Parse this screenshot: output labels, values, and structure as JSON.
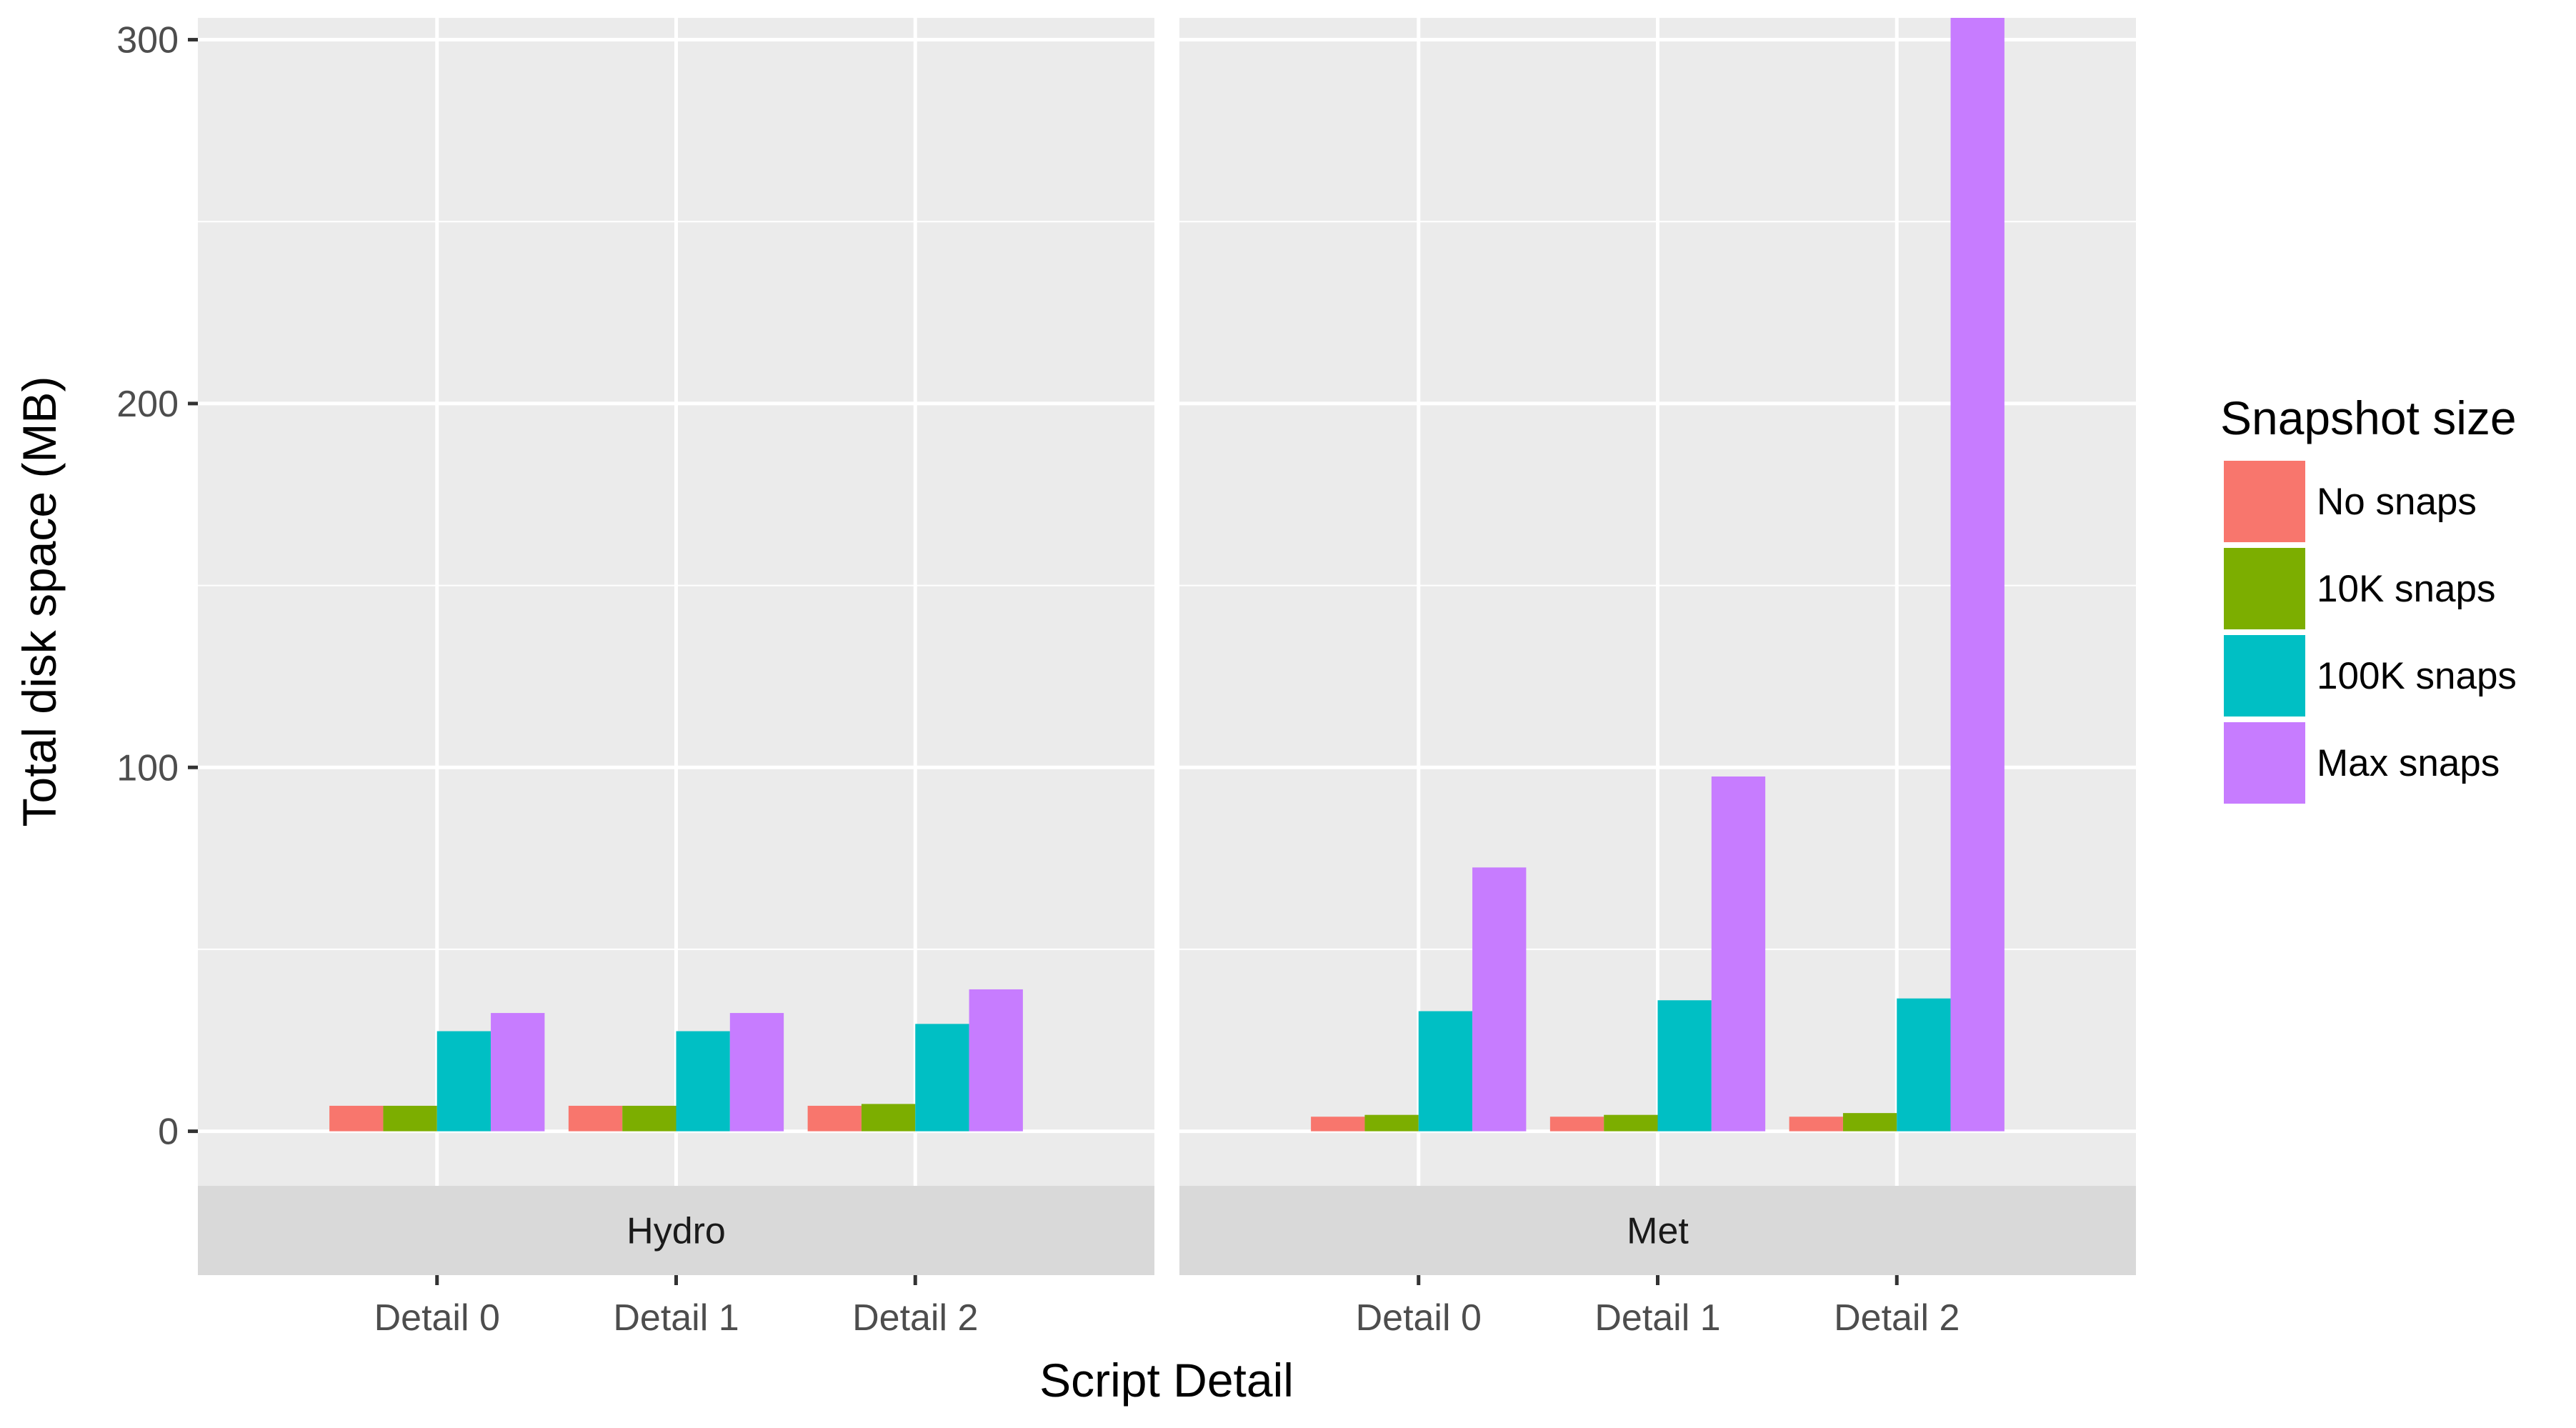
{
  "chart_data": {
    "type": "bar",
    "xlabel": "Script Detail",
    "ylabel": "Total disk space (MB)",
    "ylim": [
      -15,
      306
    ],
    "yticks": [
      0,
      100,
      200,
      300
    ],
    "grid": true,
    "legend": {
      "title": "Snapshot size",
      "position": "right"
    },
    "categories": [
      "Detail 0",
      "Detail 1",
      "Detail 2"
    ],
    "series_names": [
      "No snaps",
      "10K snaps",
      "100K snaps",
      "Max snaps"
    ],
    "colors": [
      "#F8766D",
      "#7CAE00",
      "#00BFC4",
      "#C77CFF"
    ],
    "facets": [
      {
        "label": "Hydro",
        "series": [
          {
            "name": "No snaps",
            "values": [
              7,
              7,
              7
            ]
          },
          {
            "name": "10K snaps",
            "values": [
              7,
              7,
              7.5
            ]
          },
          {
            "name": "100K snaps",
            "values": [
              27.5,
              27.5,
              29.5
            ]
          },
          {
            "name": "Max snaps",
            "values": [
              32.5,
              32.5,
              39
            ]
          }
        ]
      },
      {
        "label": "Met",
        "series": [
          {
            "name": "No snaps",
            "values": [
              4,
              4,
              4
            ]
          },
          {
            "name": "10K snaps",
            "values": [
              4.5,
              4.5,
              5
            ]
          },
          {
            "name": "100K snaps",
            "values": [
              33,
              36,
              36.5
            ]
          },
          {
            "name": "Max snaps",
            "values": [
              72.5,
              97.5,
              306
            ]
          }
        ]
      }
    ]
  }
}
